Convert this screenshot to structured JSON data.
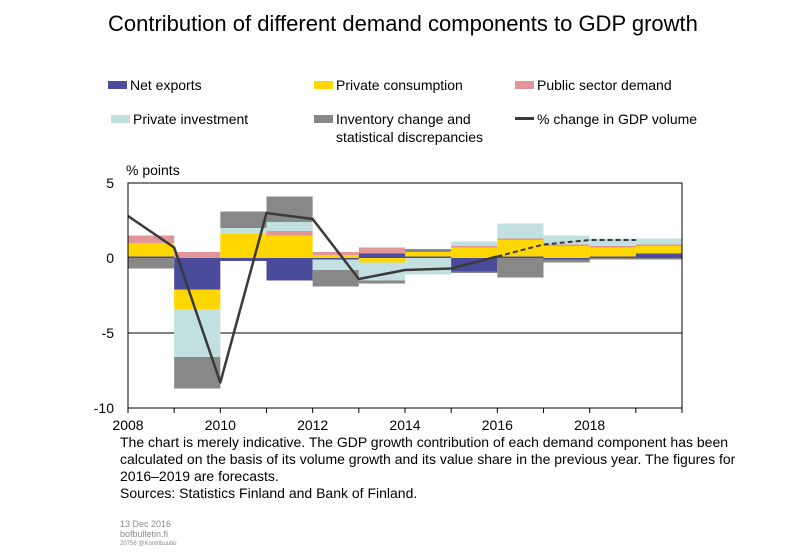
{
  "title": "Contribution of different demand components to GDP growth",
  "notes": [
    "The chart is merely indicative. The GDP growth contribution of each demand component has been calculated on the basis of its volume growth and its value share in the previous year. The figures for 2016–2019 are forecasts.",
    "Sources: Statistics Finland and Bank of Finland."
  ],
  "footer": {
    "date": "13 Dec 2016",
    "site": "bofbulletin.fi",
    "code": "20756 @Kontribuutio"
  },
  "chart_data": {
    "type": "bar",
    "stacked": true,
    "ylabel": "% points",
    "ylim": [
      -10,
      5
    ],
    "yticks": [
      5,
      0,
      -5,
      -10
    ],
    "xtick_labels": [
      "2008",
      "2010",
      "2012",
      "2014",
      "2016",
      "2018"
    ],
    "categories": [
      "2008",
      "2009",
      "2010",
      "2011",
      "2012",
      "2013",
      "2014",
      "2015",
      "2016",
      "2017",
      "2018",
      "2019"
    ],
    "grid": true,
    "legend_position": "top",
    "series": [
      {
        "name": "Net exports",
        "color": "#4b4b9c",
        "values": [
          0.1,
          -2.1,
          -0.2,
          -1.5,
          -0.1,
          0.3,
          0.1,
          -0.9,
          0.1,
          -0.1,
          0.1,
          0.3
        ]
      },
      {
        "name": "Private consumption",
        "color": "#ffd700",
        "values": [
          0.9,
          -1.3,
          1.6,
          1.5,
          0.2,
          -0.3,
          0.3,
          0.7,
          1.1,
          0.8,
          0.6,
          0.5
        ]
      },
      {
        "name": "Public sector demand",
        "color": "#e09696",
        "values": [
          0.5,
          0.4,
          0.0,
          0.3,
          0.2,
          0.4,
          0.0,
          0.1,
          0.1,
          0.1,
          0.1,
          0.1
        ]
      },
      {
        "name": "Private investment",
        "color": "#c3e0e0",
        "values": [
          0.0,
          -3.2,
          0.4,
          0.6,
          -0.7,
          -1.2,
          -1.1,
          0.3,
          1.0,
          0.6,
          0.5,
          0.4
        ]
      },
      {
        "name": "Inventory change and statistical discrepancies",
        "color": "#888888",
        "values": [
          -0.7,
          -2.1,
          1.1,
          1.7,
          -1.1,
          -0.2,
          0.2,
          -0.1,
          -1.3,
          -0.2,
          -0.1,
          -0.1
        ]
      }
    ],
    "line": {
      "name": "% change in GDP volume",
      "color": "#3a3a3a",
      "values": [
        2.8,
        0.7,
        -8.3,
        3.0,
        2.6,
        -1.4,
        -0.8,
        -0.7,
        0.1,
        0.9,
        1.2,
        1.2
      ],
      "x_positions": [
        "2007",
        "2008",
        "2009",
        "2010",
        "2011",
        "2012",
        "2013",
        "2014",
        "2015",
        "2016",
        "2017",
        "2018"
      ],
      "forecast_from": "2015"
    }
  }
}
